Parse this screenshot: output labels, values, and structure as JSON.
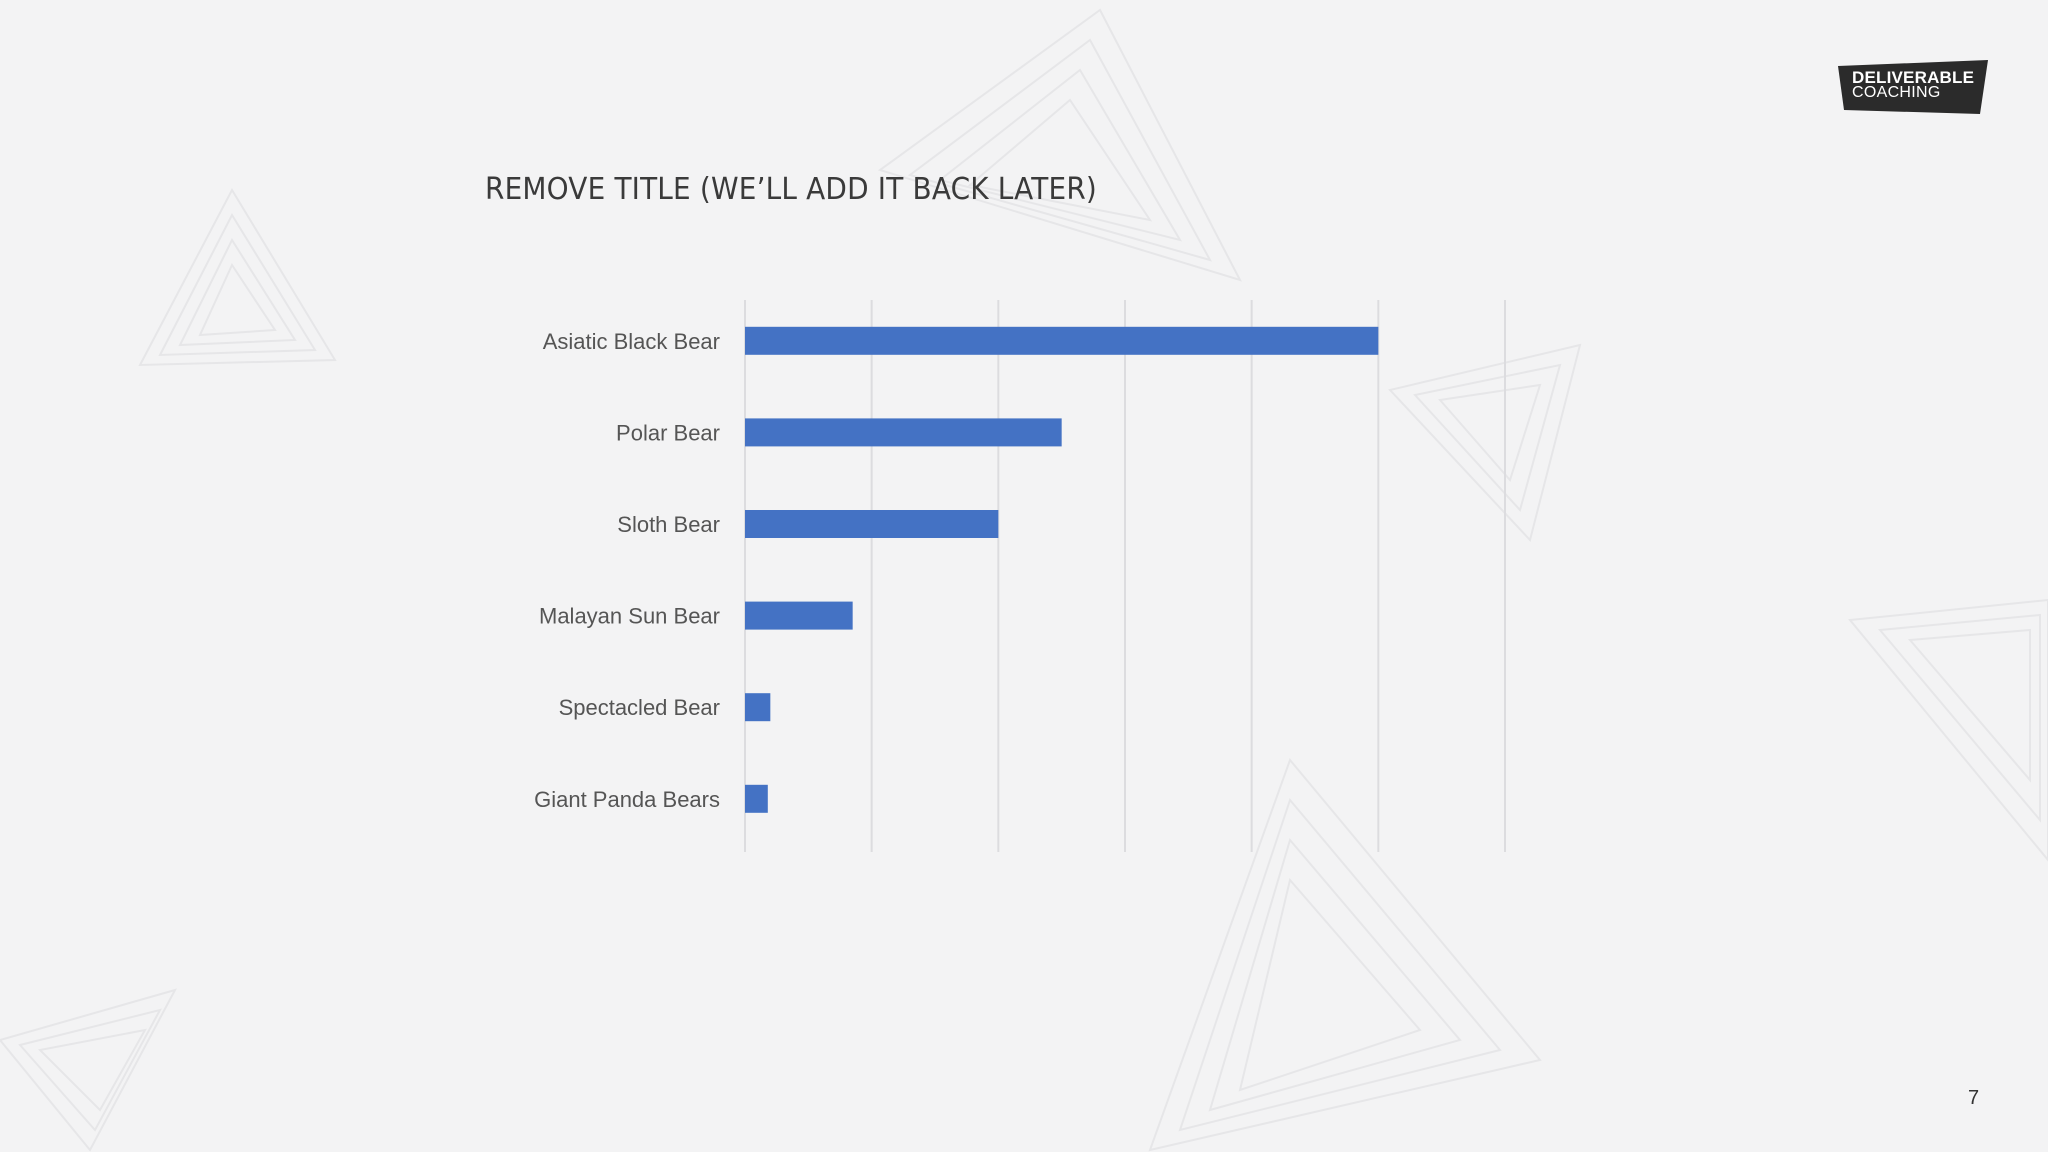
{
  "slide": {
    "title": "REMOVE TITLE (WE’LL ADD IT BACK LATER)",
    "page_number": "7"
  },
  "logo": {
    "line1": "DELIVERABLE",
    "line2": "COACHING",
    "color": "#2b2b2b"
  },
  "chart_data": {
    "type": "bar",
    "orientation": "horizontal",
    "categories": [
      "Asiatic Black Bear",
      "Polar Bear",
      "Sloth Bear",
      "Malayan Sun Bear",
      "Spectacled Bear",
      "Giant Panda Bears"
    ],
    "values": [
      50000,
      25000,
      20000,
      8500,
      2000,
      1800
    ],
    "xlim": [
      0,
      60000
    ],
    "grid": true,
    "bar_color": "#4472c4",
    "grid_color": "#dcdcdf",
    "xlabel": "",
    "ylabel": ""
  }
}
